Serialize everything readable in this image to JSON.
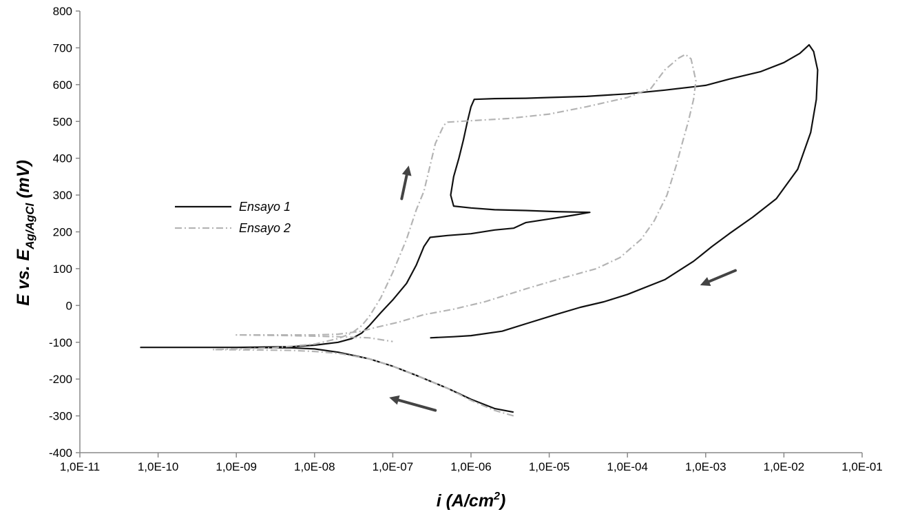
{
  "chart_data": {
    "type": "line",
    "xscale": "log",
    "xlim": [
      1e-11,
      0.1
    ],
    "ylim": [
      -400,
      800
    ],
    "x_tick_labels": [
      "1,0E-11",
      "1,0E-10",
      "1,0E-09",
      "1,0E-08",
      "1,0E-07",
      "1,0E-06",
      "1,0E-05",
      "1,0E-04",
      "1,0E-03",
      "1,0E-02",
      "1,0E-01"
    ],
    "x_tick_values": [
      1e-11,
      1e-10,
      1e-09,
      1e-08,
      1e-07,
      1e-06,
      1e-05,
      0.0001,
      0.001,
      0.01,
      0.1
    ],
    "y_tick_labels": [
      "-400",
      "-300",
      "-200",
      "-100",
      "0",
      "100",
      "200",
      "300",
      "400",
      "500",
      "600",
      "700",
      "800"
    ],
    "y_tick_values": [
      -400,
      -300,
      -200,
      -100,
      0,
      100,
      200,
      300,
      400,
      500,
      600,
      700,
      800
    ],
    "xlabel": {
      "prefix": "i (A/cm",
      "sup": "2",
      "suffix": ")"
    },
    "ylabel": {
      "prefix": "E vs. E",
      "sub": "Ag/AgCl",
      "suffix": " (mV)"
    },
    "grid": false,
    "legend_position": "left",
    "series": [
      {
        "name": "Ensayo 1",
        "color": "#111111",
        "dash": "solid",
        "points": [
          [
            3.5e-06,
            -290
          ],
          [
            2e-06,
            -280
          ],
          [
            1e-06,
            -255
          ],
          [
            5e-07,
            -225
          ],
          [
            2e-07,
            -190
          ],
          [
            1e-07,
            -165
          ],
          [
            5e-08,
            -145
          ],
          [
            2e-08,
            -127
          ],
          [
            1e-08,
            -118
          ],
          [
            5e-09,
            -115
          ],
          [
            1e-09,
            -114
          ],
          [
            1e-10,
            -114
          ],
          [
            6e-11,
            -114
          ],
          [
            1e-09,
            -114
          ],
          [
            5e-09,
            -112
          ],
          [
            1e-08,
            -108
          ],
          [
            2e-08,
            -100
          ],
          [
            3e-08,
            -90
          ],
          [
            4e-08,
            -75
          ],
          [
            5e-08,
            -55
          ],
          [
            7e-08,
            -20
          ],
          [
            1e-07,
            15
          ],
          [
            1.5e-07,
            60
          ],
          [
            2e-07,
            110
          ],
          [
            2.5e-07,
            160
          ],
          [
            3e-07,
            185
          ],
          [
            5e-07,
            190
          ],
          [
            1e-06,
            195
          ],
          [
            2e-06,
            205
          ],
          [
            3.5e-06,
            210
          ],
          [
            5e-06,
            225
          ],
          [
            1e-05,
            235
          ],
          [
            2e-05,
            245
          ],
          [
            3.3e-05,
            253
          ],
          [
            1.2e-05,
            255
          ],
          [
            5e-06,
            258
          ],
          [
            2e-06,
            260
          ],
          [
            1e-06,
            265
          ],
          [
            6e-07,
            270
          ],
          [
            5.5e-07,
            300
          ],
          [
            6e-07,
            350
          ],
          [
            7e-07,
            400
          ],
          [
            8e-07,
            450
          ],
          [
            9e-07,
            500
          ],
          [
            1e-06,
            540
          ],
          [
            1.1e-06,
            560
          ],
          [
            2e-06,
            562
          ],
          [
            5e-06,
            563
          ],
          [
            1e-05,
            565
          ],
          [
            3e-05,
            568
          ],
          [
            0.0001,
            575
          ],
          [
            0.0003,
            585
          ],
          [
            0.001,
            598
          ],
          [
            0.002,
            615
          ],
          [
            0.005,
            635
          ],
          [
            0.01,
            660
          ],
          [
            0.016,
            685
          ],
          [
            0.021,
            708
          ],
          [
            0.024,
            690
          ],
          [
            0.027,
            640
          ],
          [
            0.026,
            560
          ],
          [
            0.022,
            470
          ],
          [
            0.015,
            370
          ],
          [
            0.008,
            290
          ],
          [
            0.004,
            240
          ],
          [
            0.002,
            195
          ],
          [
            0.0012,
            160
          ],
          [
            0.0007,
            120
          ],
          [
            0.0003,
            70
          ],
          [
            0.0001,
            30
          ],
          [
            5e-05,
            10
          ],
          [
            2.5e-05,
            -5
          ],
          [
            1.2e-05,
            -25
          ],
          [
            5e-06,
            -50
          ],
          [
            2.5e-06,
            -70
          ],
          [
            1e-06,
            -82
          ],
          [
            6e-07,
            -85
          ],
          [
            3e-07,
            -88
          ]
        ]
      },
      {
        "name": "Ensayo 2",
        "color": "#b4b4b4",
        "dash": "dashdot",
        "points": [
          [
            3.5e-06,
            -300
          ],
          [
            2e-06,
            -285
          ],
          [
            1e-06,
            -258
          ],
          [
            5e-07,
            -225
          ],
          [
            2e-07,
            -190
          ],
          [
            1e-07,
            -165
          ],
          [
            5e-08,
            -145
          ],
          [
            2e-08,
            -130
          ],
          [
            1e-08,
            -125
          ],
          [
            5e-09,
            -122
          ],
          [
            2e-09,
            -121
          ],
          [
            5e-10,
            -120
          ],
          [
            1e-09,
            -118
          ],
          [
            3e-09,
            -115
          ],
          [
            1e-08,
            -105
          ],
          [
            2e-08,
            -90
          ],
          [
            3e-08,
            -75
          ],
          [
            4e-08,
            -55
          ],
          [
            5e-08,
            -30
          ],
          [
            7e-08,
            20
          ],
          [
            1e-07,
            90
          ],
          [
            1.5e-07,
            180
          ],
          [
            2e-07,
            260
          ],
          [
            2.5e-07,
            310
          ],
          [
            3e-07,
            380
          ],
          [
            3.5e-07,
            440
          ],
          [
            4.5e-07,
            490
          ],
          [
            5e-07,
            498
          ],
          [
            1e-06,
            502
          ],
          [
            3e-06,
            508
          ],
          [
            1e-05,
            520
          ],
          [
            3e-05,
            540
          ],
          [
            0.0001,
            565
          ],
          [
            0.0002,
            590
          ],
          [
            0.0003,
            640
          ],
          [
            0.00045,
            672
          ],
          [
            0.00055,
            682
          ],
          [
            0.00065,
            670
          ],
          [
            0.0007,
            640
          ],
          [
            0.00075,
            610
          ],
          [
            0.0007,
            560
          ],
          [
            0.0006,
            500
          ],
          [
            0.0005,
            440
          ],
          [
            0.00042,
            380
          ],
          [
            0.00032,
            300
          ],
          [
            0.00022,
            230
          ],
          [
            0.00015,
            180
          ],
          [
            8e-05,
            130
          ],
          [
            4e-05,
            100
          ],
          [
            1.5e-05,
            75
          ],
          [
            5e-06,
            45
          ],
          [
            1.5e-06,
            10
          ],
          [
            6e-07,
            -10
          ],
          [
            2.5e-07,
            -25
          ],
          [
            1.2e-07,
            -45
          ],
          [
            6e-08,
            -60
          ],
          [
            4e-08,
            -70
          ],
          [
            2e-08,
            -78
          ],
          [
            1e-08,
            -80
          ],
          [
            3e-09,
            -80
          ],
          [
            1e-09,
            -80
          ],
          [
            5e-09,
            -82
          ],
          [
            2e-08,
            -85
          ],
          [
            5e-08,
            -88
          ],
          [
            1e-07,
            -98
          ]
        ]
      }
    ],
    "annotations": [
      {
        "name": "arrow-up",
        "from": [
          1.3e-07,
          290
        ],
        "to": [
          1.6e-07,
          380
        ]
      },
      {
        "name": "arrow-down-left",
        "from": [
          0.0024,
          95
        ],
        "to": [
          0.00085,
          55
        ]
      },
      {
        "name": "arrow-left",
        "from": [
          3.5e-07,
          -285
        ],
        "to": [
          9e-08,
          -250
        ]
      }
    ]
  }
}
